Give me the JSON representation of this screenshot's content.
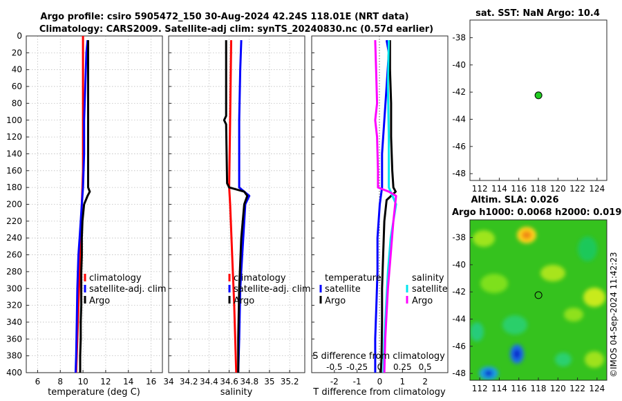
{
  "header": {
    "title_line1": "Argo profile: csiro 5905472_150 30-Aug-2024 42.24S 118.01E (NRT data)",
    "title_line2": "Climatology: CARS2009. Satellite-adj clim: synTS_20240830.nc (0.57d earlier)"
  },
  "colors": {
    "climatology": "#ff0000",
    "satellite": "#0000ff",
    "argo": "#000000",
    "salinity_satellite": "#00e5ee",
    "salinity_argo": "#ff00ff",
    "point": "#22cc22"
  },
  "depth_ticks": [
    "0",
    "20",
    "40",
    "60",
    "80",
    "100",
    "120",
    "140",
    "160",
    "180",
    "200",
    "220",
    "240",
    "260",
    "280",
    "300",
    "320",
    "340",
    "360",
    "380",
    "400"
  ],
  "chart_data": [
    {
      "type": "line",
      "name": "temperature_panel",
      "xlabel": "temperature (deg C)",
      "ylabel": "",
      "xlim": [
        5,
        17
      ],
      "ylim": [
        0,
        400
      ],
      "x_ticks": [
        "6",
        "8",
        "10",
        "12",
        "14",
        "16"
      ],
      "grid": true,
      "legend": [
        "climatology",
        "satellite-adj. clim",
        "Argo"
      ],
      "series": [
        {
          "name": "climatology",
          "depth": [
            0,
            40,
            80,
            120,
            160,
            200,
            240,
            280,
            320,
            360,
            400
          ],
          "values": [
            10.0,
            10.0,
            10.0,
            10.0,
            10.0,
            9.9,
            9.8,
            9.7,
            9.6,
            9.5,
            9.4
          ]
        },
        {
          "name": "satellite-adj. clim",
          "depth": [
            5,
            20,
            60,
            100,
            140,
            180,
            200,
            220,
            240,
            260,
            300,
            340,
            380,
            400
          ],
          "values": [
            10.4,
            10.3,
            10.2,
            10.1,
            10.1,
            10.0,
            9.9,
            9.8,
            9.7,
            9.6,
            9.5,
            9.45,
            9.4,
            9.35
          ]
        },
        {
          "name": "Argo",
          "depth": [
            5,
            50,
            100,
            150,
            180,
            185,
            190,
            200,
            220,
            240,
            260,
            280,
            300,
            320,
            340,
            360,
            380,
            400
          ],
          "values": [
            10.45,
            10.45,
            10.45,
            10.45,
            10.45,
            10.6,
            10.4,
            10.1,
            9.95,
            9.9,
            9.9,
            9.85,
            9.85,
            9.85,
            9.8,
            9.8,
            9.75,
            9.75
          ]
        }
      ]
    },
    {
      "type": "line",
      "name": "salinity_panel",
      "xlabel": "salinity",
      "ylabel": "",
      "xlim": [
        34,
        35.35
      ],
      "ylim": [
        0,
        400
      ],
      "x_ticks": [
        "34",
        "34.2",
        "34.4",
        "34.6",
        "34.8",
        "35",
        "35.2"
      ],
      "grid": true,
      "legend": [
        "climatology",
        "satellite-adj. clim",
        "Argo"
      ],
      "series": [
        {
          "name": "climatology",
          "depth": [
            5,
            100,
            180,
            200,
            260,
            320,
            400
          ],
          "values": [
            34.62,
            34.61,
            34.6,
            34.61,
            34.63,
            34.65,
            34.67
          ]
        },
        {
          "name": "satellite-adj. clim",
          "depth": [
            5,
            40,
            100,
            180,
            190,
            200,
            260,
            300,
            360,
            400
          ],
          "values": [
            34.72,
            34.71,
            34.7,
            34.7,
            34.8,
            34.76,
            34.73,
            34.71,
            34.7,
            34.69
          ]
        },
        {
          "name": "Argo",
          "depth": [
            5,
            95,
            100,
            105,
            175,
            180,
            185,
            190,
            200,
            240,
            300,
            360,
            400
          ],
          "values": [
            34.57,
            34.57,
            34.55,
            34.57,
            34.58,
            34.6,
            34.75,
            34.78,
            34.75,
            34.72,
            34.7,
            34.69,
            34.69
          ]
        }
      ]
    },
    {
      "type": "line",
      "name": "difference_panel",
      "xlabel": "T difference from climatology",
      "x2label": "S difference from climatology",
      "ylabel": "",
      "xlim": [
        -3,
        3
      ],
      "ylim": [
        0,
        400
      ],
      "x_ticks": [
        "-2",
        "-1",
        "0",
        "1",
        "2"
      ],
      "x2_ticks": [
        "-0.5",
        "-0.25",
        "0",
        "0.25",
        "0.5"
      ],
      "grid": false,
      "legend": [
        "temperature",
        "satellite",
        "Argo",
        "salinity",
        "satellite",
        "Argo"
      ],
      "series": [
        {
          "name": "T satellite",
          "depth": [
            5,
            20,
            60,
            100,
            140,
            180,
            200,
            240,
            280,
            320,
            360,
            400
          ],
          "values": [
            0.3,
            0.4,
            0.3,
            0.2,
            0.1,
            0.1,
            0.0,
            -0.1,
            -0.1,
            -0.15,
            -0.2,
            -0.2
          ]
        },
        {
          "name": "T Argo",
          "depth": [
            5,
            40,
            80,
            120,
            160,
            180,
            185,
            195,
            220,
            260,
            300,
            340,
            380,
            400
          ],
          "values": [
            0.45,
            0.45,
            0.5,
            0.5,
            0.55,
            0.6,
            0.7,
            0.3,
            0.2,
            0.15,
            0.1,
            0.1,
            0.08,
            0.05
          ]
        },
        {
          "name": "S satellite",
          "depth": [
            5,
            60,
            120,
            180,
            200,
            240,
            280,
            320,
            360,
            400
          ],
          "values": [
            0.1,
            0.09,
            0.1,
            0.1,
            0.18,
            0.12,
            0.09,
            0.07,
            0.05,
            0.04
          ]
        },
        {
          "name": "S Argo",
          "depth": [
            5,
            40,
            80,
            100,
            120,
            160,
            180,
            185,
            190,
            220,
            260,
            300,
            360,
            400
          ],
          "values": [
            -0.05,
            -0.04,
            -0.03,
            -0.05,
            -0.03,
            -0.02,
            -0.02,
            0.1,
            0.18,
            0.15,
            0.12,
            0.09,
            0.06,
            0.05
          ]
        }
      ]
    },
    {
      "type": "scatter",
      "name": "sst_map",
      "title": "sat. SST: NaN Argo: 10.4",
      "xlim": [
        111,
        125
      ],
      "ylim": [
        -48.5,
        -36.7
      ],
      "x_ticks": [
        "112",
        "114",
        "116",
        "118",
        "120",
        "122",
        "124"
      ],
      "y_ticks": [
        "-38",
        "-40",
        "-42",
        "-44",
        "-46",
        "-48"
      ],
      "points": [
        {
          "x": 118.01,
          "y": -42.24
        }
      ]
    },
    {
      "type": "heatmap",
      "name": "sla_map",
      "title_line1": "Altim. SLA: 0.026",
      "title_line2": "Argo h1000: 0.0068 h2000: 0.019",
      "xlim": [
        111,
        125
      ],
      "ylim": [
        -48.5,
        -36.7
      ],
      "x_ticks": [
        "112",
        "114",
        "116",
        "118",
        "120",
        "122",
        "124"
      ],
      "y_ticks": [
        "-38",
        "-40",
        "-42",
        "-44",
        "-46",
        "-48"
      ],
      "points": [
        {
          "x": 118.01,
          "y": -42.24
        }
      ]
    }
  ],
  "watermark": "©IMOS 04-Sep-2024 11:42:23"
}
